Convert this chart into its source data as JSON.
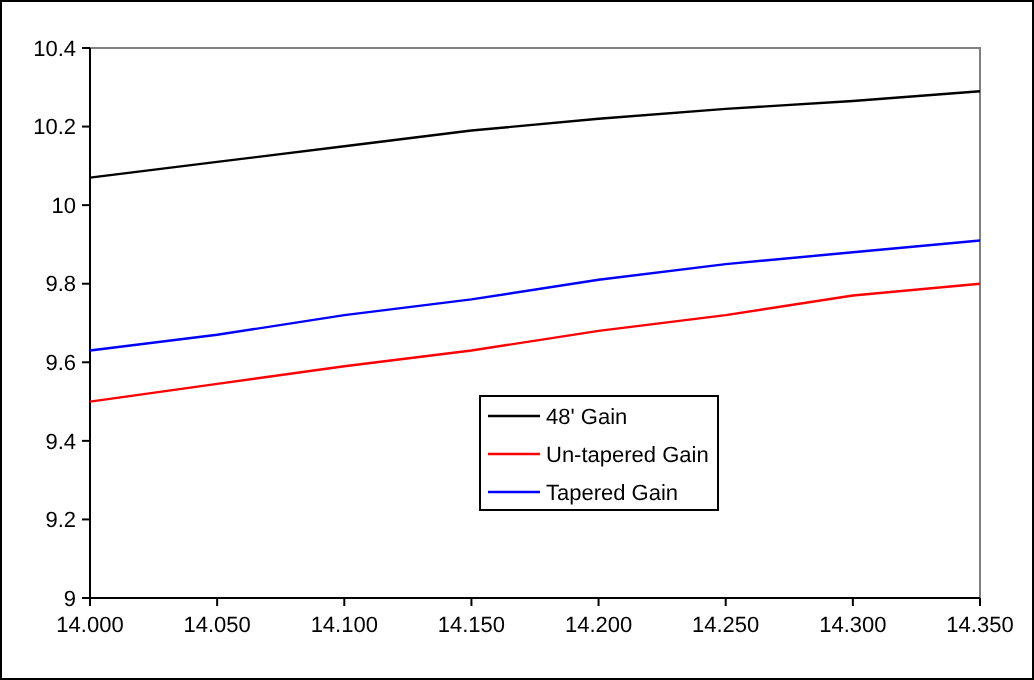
{
  "chart_data": {
    "type": "line",
    "x": [
      14.0,
      14.05,
      14.1,
      14.15,
      14.2,
      14.25,
      14.3,
      14.35
    ],
    "xlim": [
      14.0,
      14.35
    ],
    "xticks": [
      {
        "value": 14.0,
        "label": "14.000"
      },
      {
        "value": 14.05,
        "label": "14.050"
      },
      {
        "value": 14.1,
        "label": "14.100"
      },
      {
        "value": 14.15,
        "label": "14.150"
      },
      {
        "value": 14.2,
        "label": "14.200"
      },
      {
        "value": 14.25,
        "label": "14.250"
      },
      {
        "value": 14.3,
        "label": "14.300"
      },
      {
        "value": 14.35,
        "label": "14.350"
      }
    ],
    "ylim": [
      9,
      10.4
    ],
    "yticks": [
      9,
      9.2,
      9.4,
      9.6,
      9.8,
      10,
      10.2,
      10.4
    ],
    "grid": false,
    "legend": "bottom",
    "marker": "none",
    "line_style": "solid",
    "series": [
      {
        "name": "48' Gain",
        "color": "#000000",
        "values": [
          10.07,
          10.11,
          10.15,
          10.19,
          10.22,
          10.245,
          10.265,
          10.29
        ]
      },
      {
        "name": "Un-tapered Gain",
        "color": "#ff0000",
        "values": [
          9.5,
          9.545,
          9.59,
          9.63,
          9.68,
          9.72,
          9.77,
          9.8
        ]
      },
      {
        "name": "Tapered Gain",
        "color": "#0000ff",
        "values": [
          9.63,
          9.67,
          9.72,
          9.76,
          9.81,
          9.85,
          9.88,
          9.91
        ]
      }
    ]
  }
}
